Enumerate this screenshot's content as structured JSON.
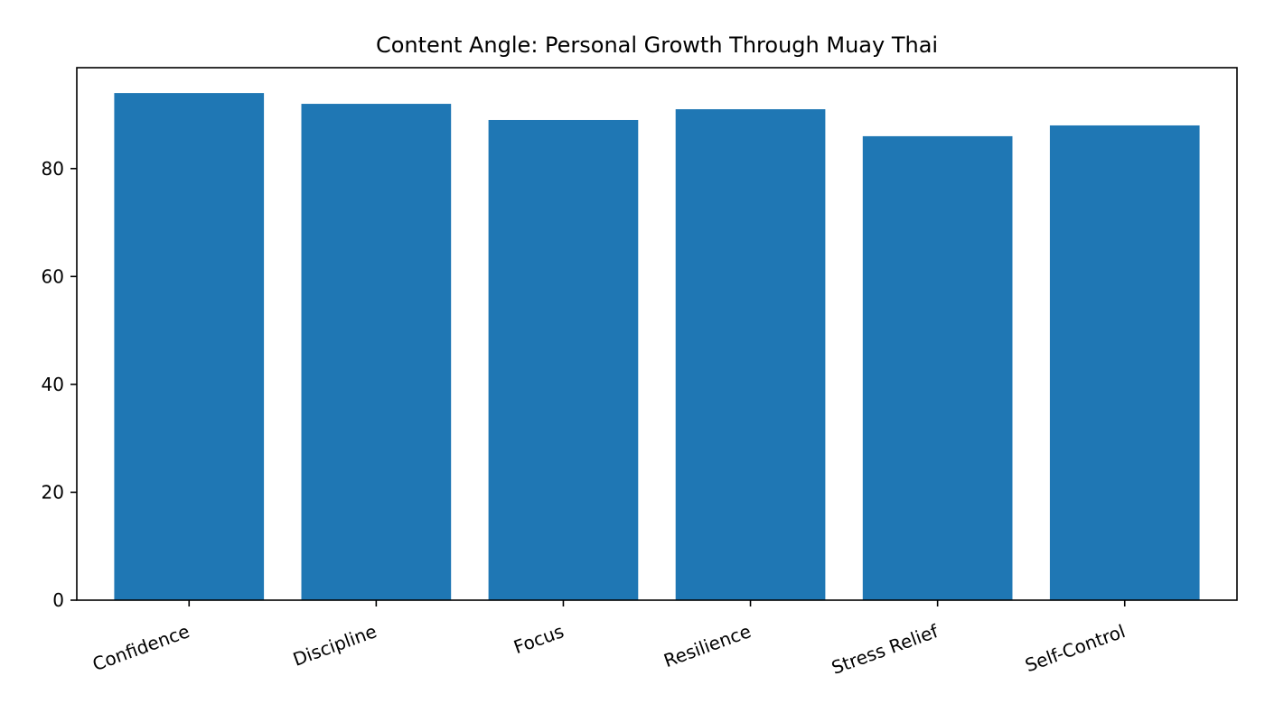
{
  "chart_data": {
    "type": "bar",
    "title": "Content Angle: Personal Growth Through Muay Thai",
    "xlabel": "",
    "ylabel": "",
    "categories": [
      "Confidence",
      "Discipline",
      "Focus",
      "Resilience",
      "Stress Relief",
      "Self-Control"
    ],
    "values": [
      94,
      92,
      89,
      91,
      86,
      88
    ],
    "ylim": [
      0,
      98.7
    ],
    "yticks": [
      0,
      20,
      40,
      60,
      80
    ],
    "grid": false,
    "legend": "none",
    "bar_color": "#1f77b4"
  }
}
